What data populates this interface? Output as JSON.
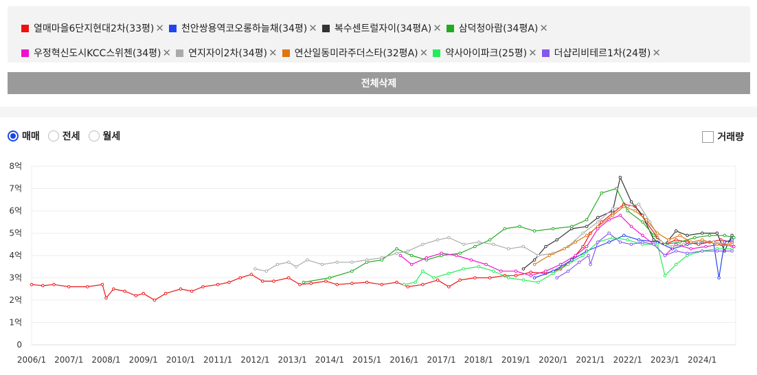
{
  "legend": {
    "items": [
      {
        "name": "열매마을6단지현대2차(33평)",
        "color": "#ee1111"
      },
      {
        "name": "천안쌍용역코오롱하늘채(34평)",
        "color": "#2244ee"
      },
      {
        "name": "복수센트럴자이(34평A)",
        "color": "#333333"
      },
      {
        "name": "삼덕청아람(34평A)",
        "color": "#22aa22"
      },
      {
        "name": "우정혁신도시KCC스위첸(34평)",
        "color": "#ee11cc"
      },
      {
        "name": "연지자이2차(34평)",
        "color": "#aaaaaa"
      },
      {
        "name": "연산일동미라주더스타(32평A)",
        "color": "#dd7711"
      },
      {
        "name": "약사아이파크(25평)",
        "color": "#22ee55"
      },
      {
        "name": "더샵리비테르1차(24평)",
        "color": "#8855ee"
      }
    ],
    "remove_glyph": "✕"
  },
  "actions": {
    "clear_all_label": "전체삭제"
  },
  "tabs": {
    "options": [
      {
        "label": "매매",
        "selected": true
      },
      {
        "label": "전세",
        "selected": false
      },
      {
        "label": "월세",
        "selected": false
      }
    ]
  },
  "volume": {
    "label": "거래량",
    "checked": false
  },
  "chart_data": {
    "type": "line",
    "xlim": [
      2006.0,
      2024.9
    ],
    "ylim": [
      0,
      8
    ],
    "y_ticks": [
      {
        "v": 0,
        "label": "0"
      },
      {
        "v": 1,
        "label": "1억"
      },
      {
        "v": 2,
        "label": "2억"
      },
      {
        "v": 3,
        "label": "3억"
      },
      {
        "v": 4,
        "label": "4억"
      },
      {
        "v": 5,
        "label": "5억"
      },
      {
        "v": 6,
        "label": "6억"
      },
      {
        "v": 7,
        "label": "7억"
      },
      {
        "v": 8,
        "label": "8억"
      }
    ],
    "x_ticks": [
      {
        "v": 2006,
        "label": "2006/1"
      },
      {
        "v": 2007,
        "label": "2007/1"
      },
      {
        "v": 2008,
        "label": "2008/1"
      },
      {
        "v": 2009,
        "label": "2009/1"
      },
      {
        "v": 2010,
        "label": "2010/1"
      },
      {
        "v": 2011,
        "label": "2011/1"
      },
      {
        "v": 2012,
        "label": "2012/1"
      },
      {
        "v": 2013,
        "label": "2013/1"
      },
      {
        "v": 2014,
        "label": "2014/1"
      },
      {
        "v": 2015,
        "label": "2015/1"
      },
      {
        "v": 2016,
        "label": "2016/1"
      },
      {
        "v": 2017,
        "label": "2017/1"
      },
      {
        "v": 2018,
        "label": "2018/1"
      },
      {
        "v": 2019,
        "label": "2019/1"
      },
      {
        "v": 2020,
        "label": "2020/1"
      },
      {
        "v": 2021,
        "label": "2021/1"
      },
      {
        "v": 2022,
        "label": "2022/1"
      },
      {
        "v": 2023,
        "label": "2023/1"
      },
      {
        "v": 2024,
        "label": "2024/1"
      }
    ],
    "grid": true,
    "series": [
      {
        "name": "열매마을6단지현대2차(33평)",
        "color": "#ee1111",
        "points": [
          [
            2006.0,
            2.7
          ],
          [
            2006.3,
            2.65
          ],
          [
            2006.6,
            2.7
          ],
          [
            2007.0,
            2.6
          ],
          [
            2007.5,
            2.6
          ],
          [
            2007.9,
            2.7
          ],
          [
            2008.0,
            2.1
          ],
          [
            2008.2,
            2.5
          ],
          [
            2008.5,
            2.4
          ],
          [
            2008.8,
            2.2
          ],
          [
            2009.0,
            2.3
          ],
          [
            2009.3,
            2.0
          ],
          [
            2009.6,
            2.3
          ],
          [
            2010.0,
            2.5
          ],
          [
            2010.3,
            2.4
          ],
          [
            2010.6,
            2.6
          ],
          [
            2011.0,
            2.7
          ],
          [
            2011.3,
            2.8
          ],
          [
            2011.6,
            3.0
          ],
          [
            2011.9,
            3.15
          ],
          [
            2012.2,
            2.85
          ],
          [
            2012.5,
            2.85
          ],
          [
            2012.9,
            3.0
          ],
          [
            2013.2,
            2.7
          ],
          [
            2013.5,
            2.75
          ],
          [
            2013.9,
            2.85
          ],
          [
            2014.2,
            2.7
          ],
          [
            2014.6,
            2.75
          ],
          [
            2015.0,
            2.8
          ],
          [
            2015.4,
            2.7
          ],
          [
            2015.8,
            2.8
          ],
          [
            2016.1,
            2.6
          ],
          [
            2016.5,
            2.7
          ],
          [
            2016.9,
            2.9
          ],
          [
            2017.2,
            2.6
          ],
          [
            2017.5,
            2.9
          ],
          [
            2017.9,
            3.0
          ],
          [
            2018.3,
            3.0
          ],
          [
            2018.7,
            3.1
          ],
          [
            2019.0,
            3.1
          ],
          [
            2019.4,
            3.25
          ],
          [
            2019.8,
            3.2
          ],
          [
            2020.2,
            3.4
          ],
          [
            2020.5,
            3.8
          ],
          [
            2020.8,
            4.4
          ],
          [
            2021.0,
            5.0
          ],
          [
            2021.3,
            5.5
          ],
          [
            2021.6,
            5.9
          ],
          [
            2021.9,
            6.3
          ],
          [
            2022.2,
            6.2
          ],
          [
            2022.5,
            5.5
          ],
          [
            2022.8,
            4.8
          ],
          [
            2023.0,
            4.5
          ],
          [
            2023.3,
            4.7
          ],
          [
            2023.6,
            4.6
          ],
          [
            2023.9,
            4.5
          ],
          [
            2024.2,
            4.6
          ],
          [
            2024.5,
            4.7
          ],
          [
            2024.8,
            4.6
          ]
        ]
      },
      {
        "name": "천안쌍용역코오롱하늘채(34평)",
        "color": "#2244ee",
        "points": [
          [
            2019.5,
            3.0
          ],
          [
            2020.0,
            3.3
          ],
          [
            2020.5,
            3.8
          ],
          [
            2020.9,
            4.2
          ],
          [
            2021.5,
            4.6
          ],
          [
            2021.9,
            4.9
          ],
          [
            2022.3,
            4.7
          ],
          [
            2022.8,
            4.6
          ],
          [
            2023.2,
            4.3
          ],
          [
            2023.6,
            4.5
          ],
          [
            2024.0,
            4.6
          ],
          [
            2024.3,
            4.6
          ],
          [
            2024.45,
            3.0
          ],
          [
            2024.6,
            4.6
          ],
          [
            2024.8,
            4.7
          ]
        ]
      },
      {
        "name": "복수센트럴자이(34평A)",
        "color": "#333333",
        "points": [
          [
            2019.2,
            3.4
          ],
          [
            2019.5,
            3.8
          ],
          [
            2019.8,
            4.4
          ],
          [
            2020.1,
            4.7
          ],
          [
            2020.5,
            5.2
          ],
          [
            2020.9,
            5.3
          ],
          [
            2021.2,
            5.7
          ],
          [
            2021.6,
            6.0
          ],
          [
            2021.8,
            7.5
          ],
          [
            2022.1,
            6.4
          ],
          [
            2022.4,
            5.8
          ],
          [
            2022.7,
            4.7
          ],
          [
            2023.0,
            4.5
          ],
          [
            2023.3,
            5.1
          ],
          [
            2023.6,
            4.9
          ],
          [
            2024.0,
            5.0
          ],
          [
            2024.4,
            5.0
          ],
          [
            2024.6,
            4.2
          ],
          [
            2024.8,
            4.9
          ]
        ]
      },
      {
        "name": "삼덕청아람(34평A)",
        "color": "#22aa22",
        "points": [
          [
            2013.3,
            2.8
          ],
          [
            2014.0,
            3.0
          ],
          [
            2014.6,
            3.3
          ],
          [
            2015.0,
            3.7
          ],
          [
            2015.4,
            3.8
          ],
          [
            2015.8,
            4.3
          ],
          [
            2016.2,
            4.0
          ],
          [
            2016.6,
            3.8
          ],
          [
            2017.0,
            4.0
          ],
          [
            2017.5,
            4.1
          ],
          [
            2017.9,
            4.4
          ],
          [
            2018.3,
            4.7
          ],
          [
            2018.7,
            5.2
          ],
          [
            2019.1,
            5.3
          ],
          [
            2019.5,
            5.1
          ],
          [
            2020.0,
            5.2
          ],
          [
            2020.5,
            5.3
          ],
          [
            2020.9,
            5.6
          ],
          [
            2021.3,
            6.8
          ],
          [
            2021.7,
            7.0
          ],
          [
            2022.0,
            6.0
          ],
          [
            2022.4,
            5.5
          ],
          [
            2022.7,
            4.9
          ],
          [
            2023.0,
            4.5
          ],
          [
            2023.4,
            4.6
          ],
          [
            2023.8,
            4.8
          ],
          [
            2024.2,
            4.9
          ],
          [
            2024.6,
            4.9
          ],
          [
            2024.85,
            4.8
          ]
        ]
      },
      {
        "name": "우정혁신도시KCC스위첸(34평)",
        "color": "#ee11cc",
        "points": [
          [
            2015.9,
            4.0
          ],
          [
            2016.2,
            3.6
          ],
          [
            2016.6,
            3.9
          ],
          [
            2017.0,
            4.1
          ],
          [
            2017.4,
            4.0
          ],
          [
            2017.8,
            3.8
          ],
          [
            2018.2,
            3.6
          ],
          [
            2018.6,
            3.3
          ],
          [
            2019.0,
            3.3
          ],
          [
            2019.4,
            3.1
          ],
          [
            2019.8,
            3.3
          ],
          [
            2020.2,
            3.6
          ],
          [
            2020.6,
            4.0
          ],
          [
            2020.9,
            4.4
          ],
          [
            2021.2,
            5.2
          ],
          [
            2021.5,
            5.6
          ],
          [
            2021.8,
            5.8
          ],
          [
            2022.1,
            5.3
          ],
          [
            2022.4,
            4.9
          ],
          [
            2022.7,
            4.5
          ],
          [
            2023.0,
            4.0
          ],
          [
            2023.3,
            4.5
          ],
          [
            2023.7,
            4.3
          ],
          [
            2024.1,
            4.4
          ],
          [
            2024.5,
            4.5
          ],
          [
            2024.85,
            4.4
          ]
        ]
      },
      {
        "name": "연지자이2차(34평)",
        "color": "#aaaaaa",
        "points": [
          [
            2012.0,
            3.4
          ],
          [
            2012.3,
            3.3
          ],
          [
            2012.6,
            3.6
          ],
          [
            2012.9,
            3.7
          ],
          [
            2013.1,
            3.5
          ],
          [
            2013.4,
            3.8
          ],
          [
            2013.8,
            3.6
          ],
          [
            2014.2,
            3.7
          ],
          [
            2014.6,
            3.7
          ],
          [
            2015.0,
            3.8
          ],
          [
            2015.4,
            3.9
          ],
          [
            2015.8,
            4.1
          ],
          [
            2016.1,
            4.2
          ],
          [
            2016.5,
            4.5
          ],
          [
            2016.9,
            4.7
          ],
          [
            2017.2,
            4.8
          ],
          [
            2017.6,
            4.5
          ],
          [
            2018.0,
            4.6
          ],
          [
            2018.4,
            4.5
          ],
          [
            2018.8,
            4.3
          ],
          [
            2019.2,
            4.4
          ],
          [
            2019.6,
            4.0
          ],
          [
            2020.0,
            4.1
          ],
          [
            2020.4,
            4.4
          ],
          [
            2020.8,
            5.0
          ],
          [
            2021.2,
            5.5
          ],
          [
            2021.6,
            6.1
          ],
          [
            2022.0,
            6.2
          ],
          [
            2022.3,
            6.3
          ],
          [
            2022.6,
            5.5
          ],
          [
            2022.9,
            4.6
          ],
          [
            2023.2,
            4.4
          ],
          [
            2023.5,
            4.5
          ],
          [
            2023.9,
            4.6
          ],
          [
            2024.3,
            4.6
          ],
          [
            2024.7,
            4.5
          ]
        ]
      },
      {
        "name": "연산일동미라주더스타(32평A)",
        "color": "#dd7711",
        "points": [
          [
            2019.5,
            3.6
          ],
          [
            2019.9,
            4.0
          ],
          [
            2020.3,
            4.3
          ],
          [
            2020.6,
            4.6
          ],
          [
            2020.9,
            4.9
          ],
          [
            2021.2,
            5.3
          ],
          [
            2021.6,
            5.8
          ],
          [
            2021.9,
            6.2
          ],
          [
            2022.2,
            6.0
          ],
          [
            2022.5,
            5.6
          ],
          [
            2022.8,
            5.0
          ],
          [
            2023.1,
            4.7
          ],
          [
            2023.4,
            4.9
          ],
          [
            2023.7,
            4.6
          ],
          [
            2024.0,
            4.7
          ],
          [
            2024.4,
            4.5
          ],
          [
            2024.8,
            4.5
          ]
        ]
      },
      {
        "name": "약사아이파크(25평)",
        "color": "#22ee55",
        "points": [
          [
            2016.0,
            2.7
          ],
          [
            2016.3,
            2.8
          ],
          [
            2016.5,
            3.3
          ],
          [
            2016.8,
            3.0
          ],
          [
            2017.2,
            3.2
          ],
          [
            2017.6,
            3.4
          ],
          [
            2018.0,
            3.5
          ],
          [
            2018.4,
            3.3
          ],
          [
            2018.8,
            3.0
          ],
          [
            2019.2,
            2.9
          ],
          [
            2019.6,
            2.8
          ],
          [
            2020.0,
            3.2
          ],
          [
            2020.4,
            3.6
          ],
          [
            2020.8,
            4.0
          ],
          [
            2021.2,
            4.6
          ],
          [
            2021.6,
            4.8
          ],
          [
            2022.0,
            4.7
          ],
          [
            2022.4,
            4.5
          ],
          [
            2022.8,
            4.5
          ],
          [
            2023.0,
            3.1
          ],
          [
            2023.3,
            3.6
          ],
          [
            2023.6,
            4.0
          ],
          [
            2024.0,
            4.2
          ],
          [
            2024.4,
            4.3
          ],
          [
            2024.8,
            4.3
          ]
        ]
      },
      {
        "name": "더샵리비테르1차(24평)",
        "color": "#8855ee",
        "points": [
          [
            2020.1,
            3.0
          ],
          [
            2020.4,
            3.3
          ],
          [
            2020.7,
            3.7
          ],
          [
            2020.95,
            4.0
          ],
          [
            2021.0,
            3.6
          ],
          [
            2021.2,
            4.6
          ],
          [
            2021.5,
            5.0
          ],
          [
            2021.8,
            4.6
          ],
          [
            2022.1,
            4.5
          ],
          [
            2022.4,
            4.6
          ],
          [
            2022.7,
            4.5
          ],
          [
            2023.0,
            4.0
          ],
          [
            2023.3,
            4.2
          ],
          [
            2023.6,
            4.1
          ],
          [
            2024.0,
            4.2
          ],
          [
            2024.4,
            4.2
          ],
          [
            2024.8,
            4.2
          ]
        ]
      }
    ]
  }
}
